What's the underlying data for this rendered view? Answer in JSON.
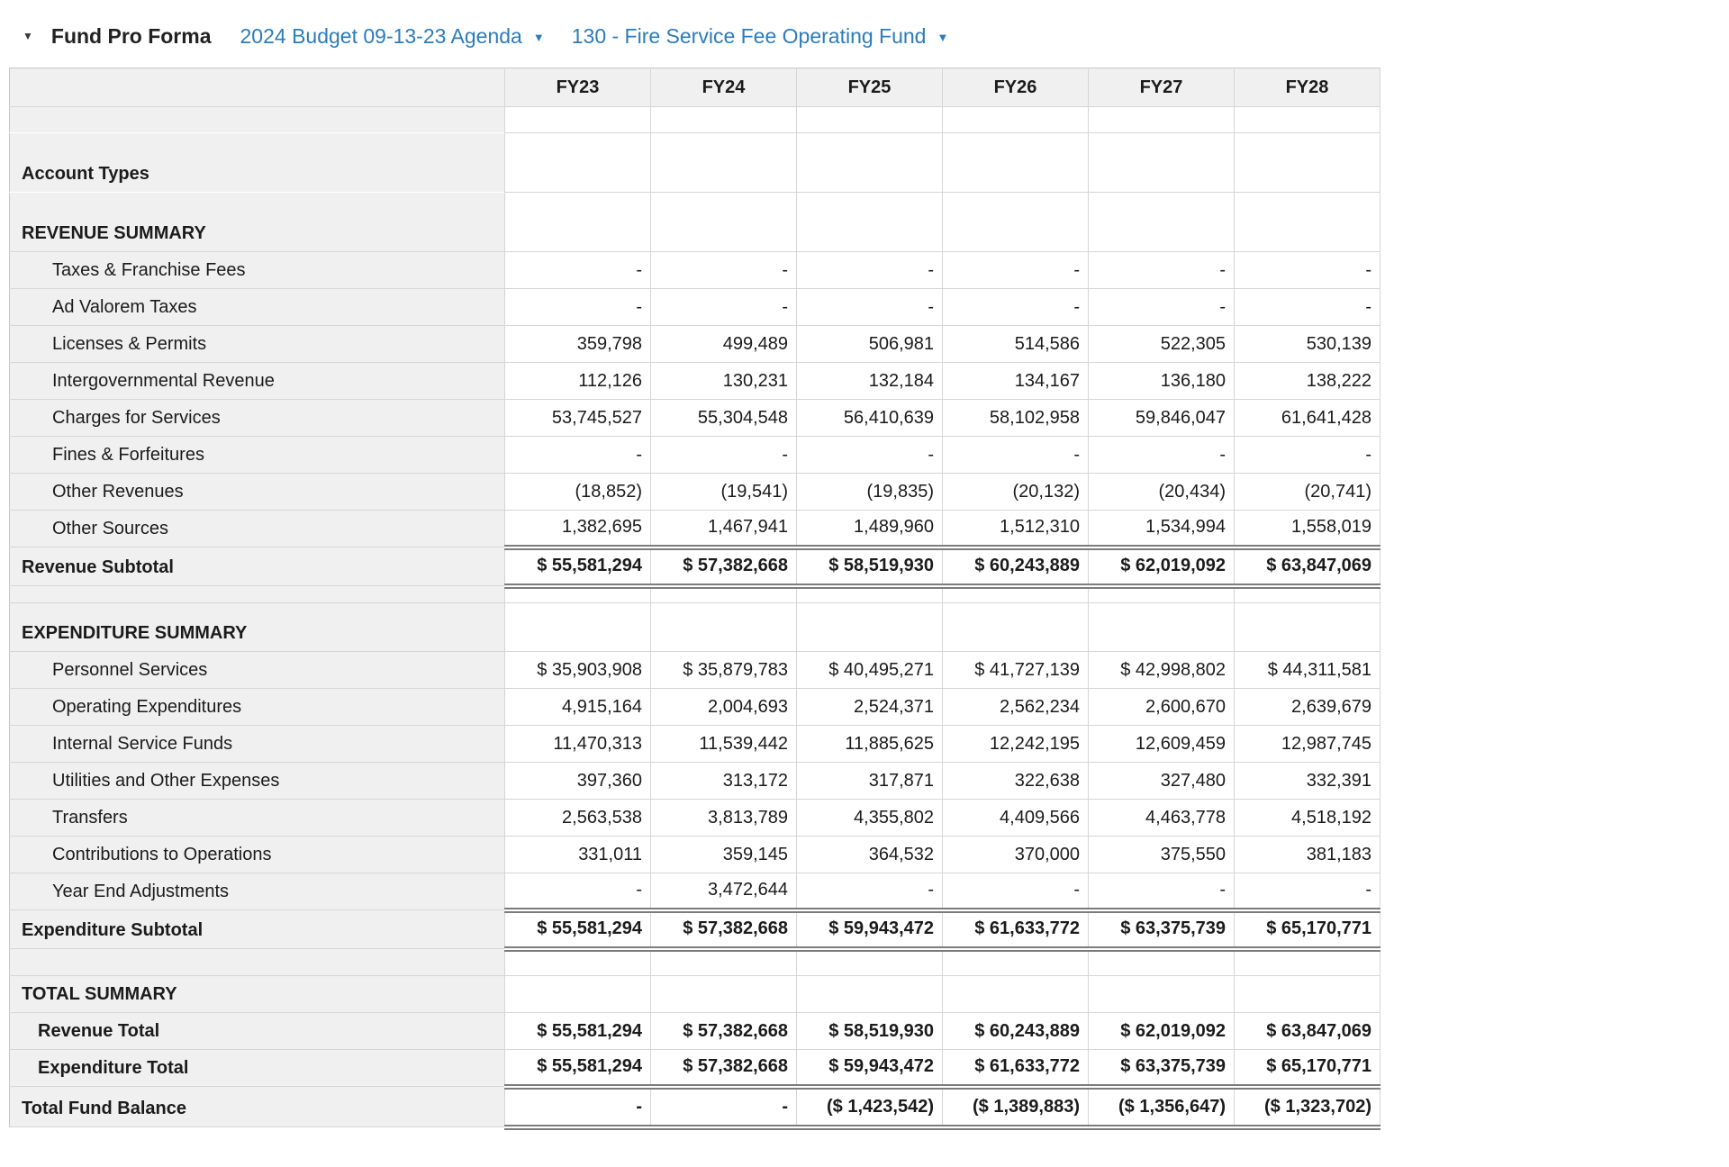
{
  "header": {
    "collapse_icon": "▼",
    "title": "Fund Pro Forma",
    "budget_dropdown": {
      "label": "2024 Budget 09-13-23 Agenda",
      "caret": "▼"
    },
    "fund_dropdown": {
      "label": "130 - Fire Service Fee Operating Fund",
      "caret": "▼"
    }
  },
  "colors": {
    "link_blue": "#2b7cba",
    "label_background": "#f0f0f0",
    "grid_line": "#d6d6d6",
    "double_rule": "#7c7c7c",
    "text": "#1b1b1b"
  },
  "table": {
    "columns": [
      "FY23",
      "FY24",
      "FY25",
      "FY26",
      "FY27",
      "FY28"
    ],
    "rows": [
      {
        "id": "spacer-top",
        "kind": "spacer-lg",
        "indent": 0,
        "dbl": false,
        "nlb": true,
        "label": "",
        "values": [
          "",
          "",
          "",
          "",
          "",
          ""
        ]
      },
      {
        "id": "account-types",
        "kind": "group-xl",
        "indent": 0,
        "dbl": false,
        "nlb": true,
        "label": "Account Types",
        "values": [
          "",
          "",
          "",
          "",
          "",
          ""
        ]
      },
      {
        "id": "revenue-summary",
        "kind": "group-xl",
        "indent": 0,
        "dbl": false,
        "nlb": false,
        "label": "REVENUE SUMMARY",
        "values": [
          "",
          "",
          "",
          "",
          "",
          ""
        ]
      },
      {
        "id": "taxes-franchise-fees",
        "kind": "detail",
        "indent": 2,
        "dbl": false,
        "nlb": false,
        "label": "Taxes & Franchise Fees",
        "values": [
          "-",
          "-",
          "-",
          "-",
          "-",
          "-"
        ]
      },
      {
        "id": "ad-valorem-taxes",
        "kind": "detail",
        "indent": 2,
        "dbl": false,
        "nlb": false,
        "label": "Ad Valorem Taxes",
        "values": [
          "-",
          "-",
          "-",
          "-",
          "-",
          "-"
        ]
      },
      {
        "id": "licenses-permits",
        "kind": "detail",
        "indent": 2,
        "dbl": false,
        "nlb": false,
        "label": "Licenses & Permits",
        "values": [
          "359,798",
          "499,489",
          "506,981",
          "514,586",
          "522,305",
          "530,139"
        ]
      },
      {
        "id": "intergovernmental-revenue",
        "kind": "detail",
        "indent": 2,
        "dbl": false,
        "nlb": false,
        "label": "Intergovernmental Revenue",
        "values": [
          "112,126",
          "130,231",
          "132,184",
          "134,167",
          "136,180",
          "138,222"
        ]
      },
      {
        "id": "charges-for-services",
        "kind": "detail",
        "indent": 2,
        "dbl": false,
        "nlb": false,
        "label": "Charges for Services",
        "values": [
          "53,745,527",
          "55,304,548",
          "56,410,639",
          "58,102,958",
          "59,846,047",
          "61,641,428"
        ]
      },
      {
        "id": "fines-forfeitures",
        "kind": "detail",
        "indent": 2,
        "dbl": false,
        "nlb": false,
        "label": "Fines & Forfeitures",
        "values": [
          "-",
          "-",
          "-",
          "-",
          "-",
          "-"
        ]
      },
      {
        "id": "other-revenues",
        "kind": "detail",
        "indent": 2,
        "dbl": false,
        "nlb": false,
        "label": "Other Revenues",
        "values": [
          "(18,852)",
          "(19,541)",
          "(19,835)",
          "(20,132)",
          "(20,434)",
          "(20,741)"
        ]
      },
      {
        "id": "other-sources",
        "kind": "detail",
        "indent": 2,
        "dbl": true,
        "nlb": false,
        "label": "Other Sources",
        "values": [
          "1,382,695",
          "1,467,941",
          "1,489,960",
          "1,512,310",
          "1,534,994",
          "1,558,019"
        ]
      },
      {
        "id": "revenue-subtotal",
        "kind": "subtotal",
        "indent": 0,
        "dbl": true,
        "nlb": false,
        "label": "Revenue Subtotal",
        "values": [
          "$ 55,581,294",
          "$ 57,382,668",
          "$ 58,519,930",
          "$ 60,243,889",
          "$ 62,019,092",
          "$ 63,847,069"
        ]
      },
      {
        "id": "spacer-mid-1",
        "kind": "spacer-sm",
        "indent": 0,
        "dbl": false,
        "nlb": false,
        "label": "",
        "values": [
          "",
          "",
          "",
          "",
          "",
          ""
        ]
      },
      {
        "id": "expenditure-summary",
        "kind": "group-lg",
        "indent": 0,
        "dbl": false,
        "nlb": false,
        "label": "EXPENDITURE SUMMARY",
        "values": [
          "",
          "",
          "",
          "",
          "",
          ""
        ]
      },
      {
        "id": "personnel-services",
        "kind": "detail",
        "indent": 2,
        "dbl": false,
        "nlb": false,
        "label": "Personnel Services",
        "values": [
          "$ 35,903,908",
          "$ 35,879,783",
          "$ 40,495,271",
          "$ 41,727,139",
          "$ 42,998,802",
          "$ 44,311,581"
        ]
      },
      {
        "id": "operating-expenditures",
        "kind": "detail",
        "indent": 2,
        "dbl": false,
        "nlb": false,
        "label": "Operating Expenditures",
        "values": [
          "4,915,164",
          "2,004,693",
          "2,524,371",
          "2,562,234",
          "2,600,670",
          "2,639,679"
        ]
      },
      {
        "id": "internal-service-funds",
        "kind": "detail",
        "indent": 2,
        "dbl": false,
        "nlb": false,
        "label": "Internal Service Funds",
        "values": [
          "11,470,313",
          "11,539,442",
          "11,885,625",
          "12,242,195",
          "12,609,459",
          "12,987,745"
        ]
      },
      {
        "id": "utilities-other-expenses",
        "kind": "detail",
        "indent": 2,
        "dbl": false,
        "nlb": false,
        "label": "Utilities and Other Expenses",
        "values": [
          "397,360",
          "313,172",
          "317,871",
          "322,638",
          "327,480",
          "332,391"
        ]
      },
      {
        "id": "transfers",
        "kind": "detail",
        "indent": 2,
        "dbl": false,
        "nlb": false,
        "label": "Transfers",
        "values": [
          "2,563,538",
          "3,813,789",
          "4,355,802",
          "4,409,566",
          "4,463,778",
          "4,518,192"
        ]
      },
      {
        "id": "contributions-to-operations",
        "kind": "detail",
        "indent": 2,
        "dbl": false,
        "nlb": false,
        "label": "Contributions to Operations",
        "values": [
          "331,011",
          "359,145",
          "364,532",
          "370,000",
          "375,550",
          "381,183"
        ]
      },
      {
        "id": "year-end-adjustments",
        "kind": "detail",
        "indent": 2,
        "dbl": true,
        "nlb": false,
        "label": "Year End Adjustments",
        "values": [
          "-",
          "3,472,644",
          "-",
          "-",
          "-",
          "-"
        ]
      },
      {
        "id": "expenditure-subtotal",
        "kind": "subtotal",
        "indent": 0,
        "dbl": true,
        "nlb": false,
        "label": "Expenditure Subtotal",
        "values": [
          "$ 55,581,294",
          "$ 57,382,668",
          "$ 59,943,472",
          "$ 61,633,772",
          "$ 63,375,739",
          "$ 65,170,771"
        ]
      },
      {
        "id": "spacer-mid-2",
        "kind": "spacer-md",
        "indent": 0,
        "dbl": false,
        "nlb": false,
        "label": "",
        "values": [
          "",
          "",
          "",
          "",
          "",
          ""
        ]
      },
      {
        "id": "total-summary",
        "kind": "group-md",
        "indent": 0,
        "dbl": false,
        "nlb": false,
        "label": "TOTAL SUMMARY",
        "values": [
          "",
          "",
          "",
          "",
          "",
          ""
        ]
      },
      {
        "id": "revenue-total",
        "kind": "total",
        "indent": 1,
        "dbl": false,
        "nlb": false,
        "label": "Revenue Total",
        "values": [
          "$ 55,581,294",
          "$ 57,382,668",
          "$ 58,519,930",
          "$ 60,243,889",
          "$ 62,019,092",
          "$ 63,847,069"
        ]
      },
      {
        "id": "expenditure-total",
        "kind": "total",
        "indent": 1,
        "dbl": true,
        "nlb": false,
        "label": "Expenditure Total",
        "values": [
          "$ 55,581,294",
          "$ 57,382,668",
          "$ 59,943,472",
          "$ 61,633,772",
          "$ 63,375,739",
          "$ 65,170,771"
        ]
      },
      {
        "id": "total-fund-balance",
        "kind": "balance",
        "indent": 0,
        "dbl": true,
        "nlb": false,
        "label": "Total Fund Balance",
        "values": [
          "-",
          "-",
          "($ 1,423,542)",
          "($ 1,389,883)",
          "($ 1,356,647)",
          "($ 1,323,702)"
        ]
      }
    ]
  }
}
